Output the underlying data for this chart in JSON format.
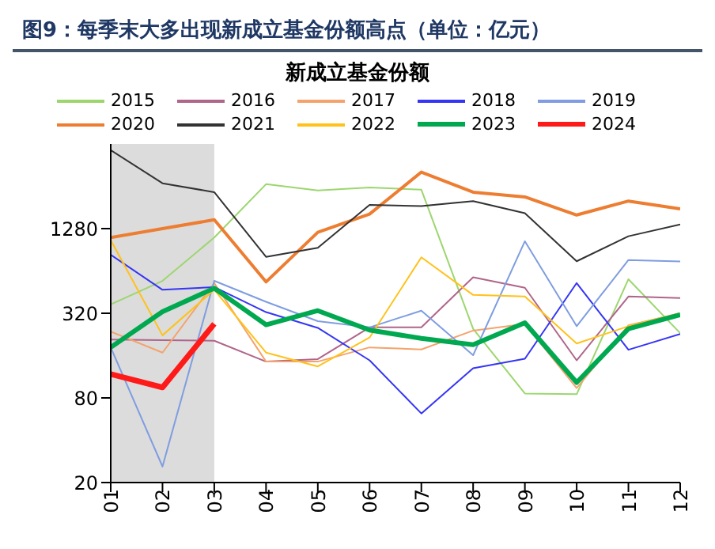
{
  "chart_data": {
    "type": "line",
    "title": "图9：每季末大多出现新成立基金份额高点（单位：亿元）",
    "subtitle": "新成立基金份额",
    "categories": [
      "01",
      "02",
      "03",
      "04",
      "05",
      "06",
      "07",
      "08",
      "09",
      "10",
      "11",
      "12"
    ],
    "series": [
      {
        "name": "2015",
        "color": "#9dd66f",
        "values": [
          370,
          544,
          1106,
          2650,
          2390,
          2510,
          2420,
          248,
          86,
          85,
          559,
          231
        ]
      },
      {
        "name": "2016",
        "color": "#b0658a",
        "values": [
          208,
          206,
          204,
          145,
          151,
          254,
          254,
          577,
          486,
          148,
          421,
          410
        ]
      },
      {
        "name": "2017",
        "color": "#f4a36c",
        "values": [
          237,
          168,
          525,
          145,
          145,
          183,
          177,
          241,
          269,
          94,
          263,
          320
        ]
      },
      {
        "name": "2018",
        "color": "#3535f5",
        "values": [
          834,
          470,
          491,
          326,
          252,
          148,
          62,
          130,
          152,
          525,
          176,
          228
        ]
      },
      {
        "name": "2019",
        "color": "#7f9de0",
        "values": [
          183,
          26,
          544,
          386,
          281,
          254,
          334,
          161,
          1041,
          259,
          765,
          747
        ]
      },
      {
        "name": "2020",
        "color": "#ed7d31",
        "values": [
          1106,
          1280,
          1480,
          535,
          1206,
          1624,
          3230,
          2325,
          2150,
          1600,
          2010,
          1770
        ]
      },
      {
        "name": "2021",
        "color": "#333333",
        "values": [
          4620,
          2690,
          2325,
          806,
          934,
          1890,
          1850,
          2010,
          1650,
          750,
          1130,
          1370
        ]
      },
      {
        "name": "2022",
        "color": "#ffc21a",
        "values": [
          1060,
          223,
          470,
          168,
          134,
          215,
          800,
          432,
          421,
          195,
          259,
          320
        ]
      },
      {
        "name": "2023",
        "color": "#00a850",
        "values": [
          183,
          328,
          482,
          265,
          334,
          243,
          212,
          191,
          274,
          103,
          248,
          312
        ]
      },
      {
        "name": "2024",
        "color": "#ff1a1a",
        "values": [
          118,
          95,
          269,
          null,
          null,
          null,
          null,
          null,
          null,
          null,
          null,
          null
        ]
      }
    ],
    "log": "y",
    "ylim": [
      20,
      5120
    ],
    "yticks": [
      20,
      80,
      320,
      1280
    ],
    "bands": [
      {
        "axis": "x",
        "from": "01",
        "to": "03",
        "color": "#dcdcdc"
      }
    ],
    "legend": "top",
    "grid": false,
    "marker": "none",
    "line_style": "solid"
  }
}
